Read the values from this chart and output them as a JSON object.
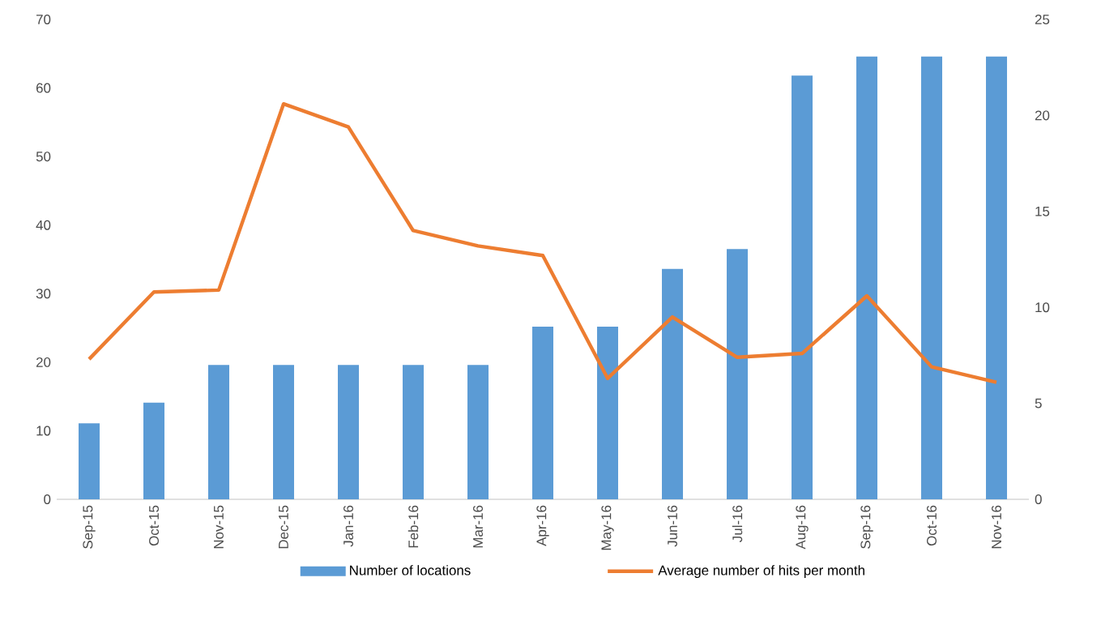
{
  "chart_data": {
    "type": "bar",
    "categories": [
      "Sep-15",
      "Oct-15",
      "Nov-15",
      "Dec-15",
      "Jan-16",
      "Feb-16",
      "Mar-16",
      "Apr-16",
      "May-16",
      "Jun-16",
      "Jul-16",
      "Aug-16",
      "Sep-16",
      "Oct-16",
      "Nov-16"
    ],
    "series": [
      {
        "name": "Number of locations",
        "color": "#5b9bd5",
        "values": [
          11.1,
          14.1,
          19.6,
          19.6,
          19.6,
          19.6,
          19.6,
          25.2,
          25.2,
          33.6,
          36.5,
          61.8,
          64.6,
          64.6,
          64.6
        ]
      },
      {
        "name": "Average number of hits per month",
        "type": "line",
        "axis": "y2",
        "color": "#ed7d31",
        "values": [
          7.3,
          10.8,
          10.9,
          20.6,
          19.4,
          14.0,
          13.2,
          12.7,
          6.3,
          9.5,
          7.4,
          7.6,
          10.6,
          6.9,
          6.1
        ]
      }
    ],
    "ylim": [
      0,
      70
    ],
    "yticks": [
      0,
      10,
      20,
      30,
      40,
      50,
      60,
      70
    ],
    "y2lim": [
      0,
      25
    ],
    "y2ticks": [
      0,
      5,
      10,
      15,
      20,
      25
    ],
    "legend": "bottom"
  }
}
